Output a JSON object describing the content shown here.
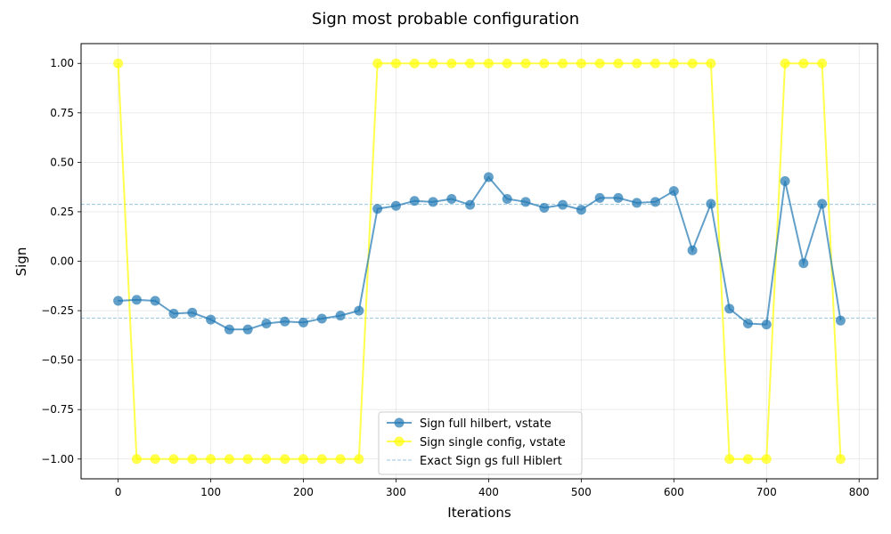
{
  "chart_data": {
    "type": "line",
    "title": "Sign most probable configuration",
    "xlabel": "Iterations",
    "ylabel": "Sign",
    "xlim": [
      -40,
      820
    ],
    "ylim": [
      -1.1,
      1.1
    ],
    "xticks": [
      0,
      100,
      200,
      300,
      400,
      500,
      600,
      700,
      800
    ],
    "yticks": [
      -1.0,
      -0.75,
      -0.5,
      -0.25,
      0.0,
      0.25,
      0.5,
      0.75,
      1.0
    ],
    "xtick_labels": [
      "0",
      "100",
      "200",
      "300",
      "400",
      "500",
      "600",
      "700",
      "800"
    ],
    "ytick_labels": [
      "−1.00",
      "−0.75",
      "−0.50",
      "−0.25",
      "0.00",
      "0.25",
      "0.50",
      "0.75",
      "1.00"
    ],
    "grid": true,
    "legend_position": "bottom-center",
    "x": [
      0,
      20,
      40,
      60,
      80,
      100,
      120,
      140,
      160,
      180,
      200,
      220,
      240,
      260,
      280,
      300,
      320,
      340,
      360,
      380,
      400,
      420,
      440,
      460,
      480,
      500,
      520,
      540,
      560,
      580,
      600,
      620,
      640,
      660,
      680,
      700,
      720,
      740,
      760,
      780
    ],
    "series": [
      {
        "name": "Sign full hilbert, vstate",
        "color": "#1f77b4",
        "values": [
          -0.2,
          -0.195,
          -0.2,
          -0.265,
          -0.26,
          -0.295,
          -0.345,
          -0.345,
          -0.315,
          -0.305,
          -0.31,
          -0.29,
          -0.275,
          -0.25,
          0.265,
          0.28,
          0.305,
          0.3,
          0.315,
          0.285,
          0.425,
          0.315,
          0.3,
          0.27,
          0.285,
          0.26,
          0.32,
          0.32,
          0.295,
          0.3,
          0.355,
          0.055,
          0.29,
          -0.24,
          -0.315,
          -0.32,
          0.405,
          -0.01,
          0.29,
          -0.3
        ]
      },
      {
        "name": "Sign single config, vstate",
        "color": "#ffff00",
        "values": [
          1,
          -1,
          -1,
          -1,
          -1,
          -1,
          -1,
          -1,
          -1,
          -1,
          -1,
          -1,
          -1,
          -1,
          1,
          1,
          1,
          1,
          1,
          1,
          1,
          1,
          1,
          1,
          1,
          1,
          1,
          1,
          1,
          1,
          1,
          1,
          1,
          -1,
          -1,
          -1,
          1,
          1,
          1,
          -1
        ]
      }
    ],
    "reference_lines": {
      "name": "Exact Sign gs full Hiblert",
      "color": "#6baed6",
      "values": [
        0.2875,
        -0.2875
      ]
    }
  }
}
